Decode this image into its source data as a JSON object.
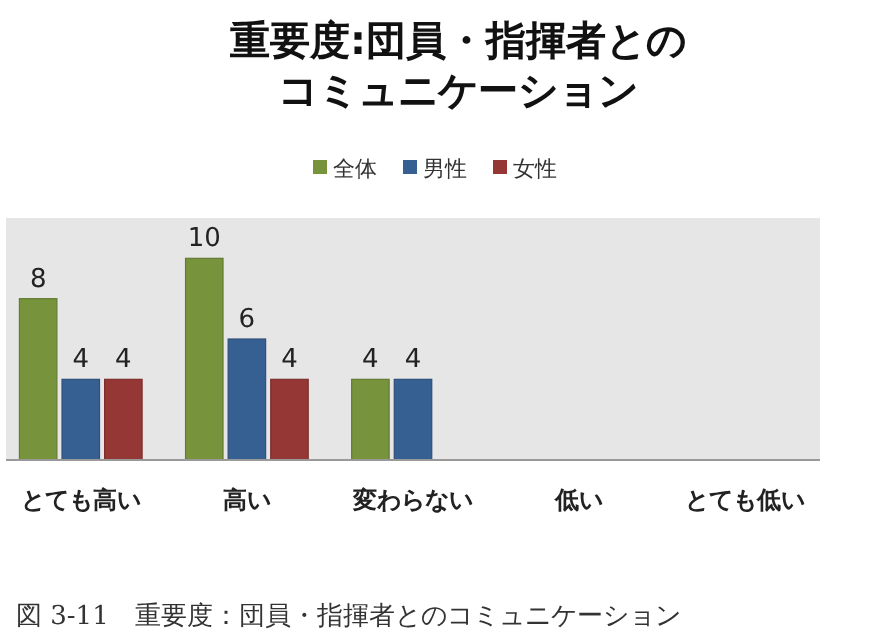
{
  "chart_data": {
    "type": "bar",
    "title": "重要度:団員・指揮者とのコミュニケーション",
    "categories": [
      "とても高い",
      "高い",
      "変わらない",
      "低い",
      "とても低い"
    ],
    "series": [
      {
        "name": "全体",
        "color": "#77933c",
        "values": [
          8,
          10,
          4,
          null,
          null
        ]
      },
      {
        "name": "男性",
        "color": "#376092",
        "values": [
          4,
          6,
          4,
          null,
          null
        ]
      },
      {
        "name": "女性",
        "color": "#953735",
        "values": [
          4,
          4,
          null,
          null,
          null
        ]
      }
    ],
    "data_labels": true,
    "legend": "top",
    "annotations": [
      "図 3-11　重要度：団員・指揮者とのコミュニケーション"
    ]
  }
}
